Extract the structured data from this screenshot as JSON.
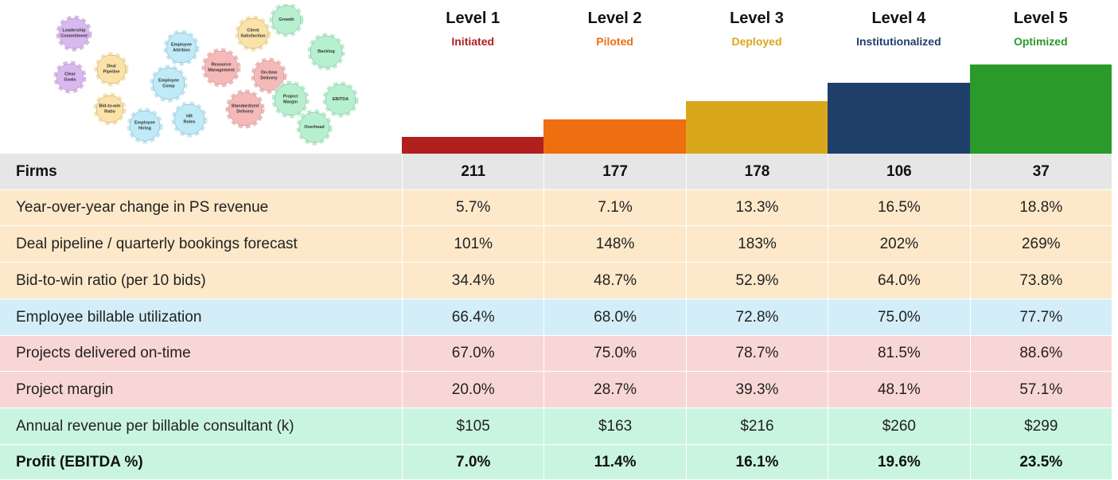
{
  "gears": [
    {
      "label": "Leadership Commitment",
      "color": "#d9b8ef"
    },
    {
      "label": "Clear Goals",
      "color": "#d9b8ef"
    },
    {
      "label": "Deal Pipeline",
      "color": "#fbe3a8"
    },
    {
      "label": "Bid-to-win Ratio",
      "color": "#fbe3a8"
    },
    {
      "label": "Employee Attrition",
      "color": "#bfeaf7"
    },
    {
      "label": "Employee Comp",
      "color": "#bfeaf7"
    },
    {
      "label": "Employee Hiring",
      "color": "#bfeaf7"
    },
    {
      "label": "HR Roles",
      "color": "#bfeaf7"
    },
    {
      "label": "Resource Management",
      "color": "#f6b9b9"
    },
    {
      "label": "Client Satisfaction",
      "color": "#fbe3a8"
    },
    {
      "label": "On-time Delivery",
      "color": "#f6b9b9"
    },
    {
      "label": "Standardized Delivery",
      "color": "#f6b9b9"
    },
    {
      "label": "Growth",
      "color": "#b6f0cf"
    },
    {
      "label": "Backlog",
      "color": "#b6f0cf"
    },
    {
      "label": "Project Margin",
      "color": "#b6f0cf"
    },
    {
      "label": "EBITDA",
      "color": "#b6f0cf"
    },
    {
      "label": "Overhead",
      "color": "#b6f0cf"
    }
  ],
  "levels": [
    {
      "name": "Level 1",
      "stage": "Initiated",
      "color": "#b11f1f"
    },
    {
      "name": "Level 2",
      "stage": "Piloted",
      "color": "#ee6f0f"
    },
    {
      "name": "Level 3",
      "stage": "Deployed",
      "color": "#d9a71c"
    },
    {
      "name": "Level 4",
      "stage": "Institutionalized",
      "color": "#1f3f6b"
    },
    {
      "name": "Level 5",
      "stage": "Optimized",
      "color": "#2a9a2a"
    }
  ],
  "table": {
    "rows": [
      {
        "label": "Firms",
        "values": [
          "211",
          "177",
          "178",
          "106",
          "37"
        ],
        "color": "#e6e6e6",
        "bold": true
      },
      {
        "label": "Year-over-year change in PS revenue",
        "values": [
          "5.7%",
          "7.1%",
          "13.3%",
          "16.5%",
          "18.8%"
        ],
        "color": "#fde9c9"
      },
      {
        "label": "Deal pipeline / quarterly bookings forecast",
        "values": [
          "101%",
          "148%",
          "183%",
          "202%",
          "269%"
        ],
        "color": "#fde9c9"
      },
      {
        "label": "Bid-to-win ratio (per 10 bids)",
        "values": [
          "34.4%",
          "48.7%",
          "52.9%",
          "64.0%",
          "73.8%"
        ],
        "color": "#fde9c9"
      },
      {
        "label": "Employee billable utilization",
        "values": [
          "66.4%",
          "68.0%",
          "72.8%",
          "75.0%",
          "77.7%"
        ],
        "color": "#d3eef8"
      },
      {
        "label": "Projects delivered on-time",
        "values": [
          "67.0%",
          "75.0%",
          "78.7%",
          "81.5%",
          "88.6%"
        ],
        "color": "#f9d6d6"
      },
      {
        "label": "Project margin",
        "values": [
          "20.0%",
          "28.7%",
          "39.3%",
          "48.1%",
          "57.1%"
        ],
        "color": "#f9d6d6"
      },
      {
        "label": "Annual revenue per billable consultant (k)",
        "values": [
          "$105",
          "$163",
          "$216",
          "$260",
          "$299"
        ],
        "color": "#c9f5e0"
      },
      {
        "label": "Profit (EBITDA %)",
        "values": [
          "7.0%",
          "11.4%",
          "16.1%",
          "19.6%",
          "23.5%"
        ],
        "color": "#c9f5e0",
        "bold": true
      }
    ]
  }
}
